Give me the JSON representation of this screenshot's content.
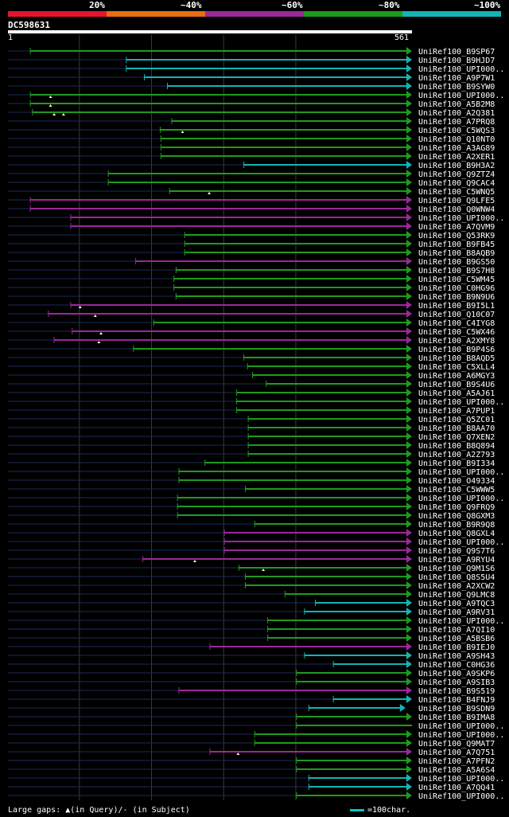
{
  "legend": [
    {
      "label": "20%",
      "color": "#e6142d"
    },
    {
      "label": "~40%",
      "color": "#e66e14"
    },
    {
      "label": "~60%",
      "color": "#9b289b"
    },
    {
      "label": "~80%",
      "color": "#1e9b1e"
    },
    {
      "label": "~100%",
      "color": "#14b4b4"
    }
  ],
  "query": {
    "id": "DC598631",
    "start": "1",
    "end": "561"
  },
  "colors": {
    "background": "#000000",
    "backbone": "#1c2a5a",
    "gridline": "#3a3a3a",
    "marker": "#ffffc8"
  },
  "footer": {
    "gaps_text": "Large gaps: ▲(in Query)/‐ (in Subject)",
    "scale_text": "=100char."
  },
  "chart_data": {
    "type": "alignment-overview",
    "title": "DC598631",
    "x_range": [
      1,
      561
    ],
    "gridlines_at": [
      100,
      200,
      300,
      400
    ],
    "identity_classes": {
      "g": "~80%",
      "c": "~100%",
      "p": "~60%"
    },
    "hits": [
      {
        "label": "UniRef100_B9SP67",
        "start": 32,
        "end": 561,
        "cls": "g",
        "arrow": true
      },
      {
        "label": "UniRef100_B9HJD7",
        "start": 165,
        "end": 561,
        "cls": "c",
        "arrow": true
      },
      {
        "label": "UniRef100_UPI000..",
        "start": 165,
        "end": 561,
        "cls": "c",
        "arrow": true
      },
      {
        "label": "UniRef100_A9P7W1",
        "start": 190,
        "end": 561,
        "cls": "c",
        "arrow": true
      },
      {
        "label": "UniRef100_B9SYW0",
        "start": 222,
        "end": 561,
        "cls": "c",
        "arrow": true
      },
      {
        "label": "UniRef100_UPI000..",
        "start": 32,
        "end": 561,
        "cls": "g",
        "arrow": true,
        "gaps": [
          60
        ]
      },
      {
        "label": "UniRef100_A5B2M8",
        "start": 32,
        "end": 561,
        "cls": "g",
        "arrow": true,
        "gaps": [
          60
        ]
      },
      {
        "label": "UniRef100_A2Q381",
        "start": 35,
        "end": 561,
        "cls": "g",
        "arrow": true,
        "gaps": [
          65,
          78
        ]
      },
      {
        "label": "UniRef100_A7PRQ8",
        "start": 228,
        "end": 561,
        "cls": "g",
        "arrow": true
      },
      {
        "label": "UniRef100_C5WQS3",
        "start": 212,
        "end": 561,
        "cls": "g",
        "arrow": true,
        "gaps": [
          243
        ]
      },
      {
        "label": "UniRef100_Q10NT0",
        "start": 213,
        "end": 561,
        "cls": "g",
        "arrow": true
      },
      {
        "label": "UniRef100_A3AG89",
        "start": 213,
        "end": 561,
        "cls": "g",
        "arrow": true
      },
      {
        "label": "UniRef100_A2XER1",
        "start": 213,
        "end": 561,
        "cls": "g",
        "arrow": true
      },
      {
        "label": "UniRef100_B9H3A2",
        "start": 328,
        "end": 561,
        "cls": "c",
        "arrow": true
      },
      {
        "label": "UniRef100_Q9ZTZ4",
        "start": 140,
        "end": 561,
        "cls": "g",
        "arrow": true
      },
      {
        "label": "UniRef100_Q9CAC4",
        "start": 140,
        "end": 561,
        "cls": "g",
        "arrow": true
      },
      {
        "label": "UniRef100_C5WNQ5",
        "start": 225,
        "end": 561,
        "cls": "g",
        "arrow": true,
        "gaps": [
          280
        ]
      },
      {
        "label": "UniRef100_Q9LFE5",
        "start": 32,
        "end": 561,
        "cls": "p",
        "arrow": true
      },
      {
        "label": "UniRef100_Q0WNW4",
        "start": 32,
        "end": 561,
        "cls": "p",
        "arrow": true
      },
      {
        "label": "UniRef100_UPI000..",
        "start": 88,
        "end": 561,
        "cls": "p",
        "arrow": true
      },
      {
        "label": "UniRef100_A7QVM9",
        "start": 88,
        "end": 561,
        "cls": "p",
        "arrow": true
      },
      {
        "label": "UniRef100_Q53RK9",
        "start": 246,
        "end": 561,
        "cls": "g",
        "arrow": true
      },
      {
        "label": "UniRef100_B9FB45",
        "start": 246,
        "end": 561,
        "cls": "g",
        "arrow": true
      },
      {
        "label": "UniRef100_B8AQB9",
        "start": 246,
        "end": 561,
        "cls": "g",
        "arrow": true
      },
      {
        "label": "UniRef100_B9GS50",
        "start": 178,
        "end": 561,
        "cls": "p",
        "arrow": true
      },
      {
        "label": "UniRef100_B9S7H8",
        "start": 234,
        "end": 561,
        "cls": "g",
        "arrow": true
      },
      {
        "label": "UniRef100_C5WM45",
        "start": 231,
        "end": 561,
        "cls": "g",
        "arrow": true
      },
      {
        "label": "UniRef100_C0HG96",
        "start": 231,
        "end": 561,
        "cls": "g",
        "arrow": true
      },
      {
        "label": "UniRef100_B9N9U6",
        "start": 234,
        "end": 561,
        "cls": "g",
        "arrow": true
      },
      {
        "label": "UniRef100_B9I5L1",
        "start": 88,
        "end": 561,
        "cls": "p",
        "arrow": true,
        "gaps": [
          101
        ]
      },
      {
        "label": "UniRef100_Q10C07",
        "start": 57,
        "end": 561,
        "cls": "p",
        "arrow": true,
        "gaps": [
          122
        ]
      },
      {
        "label": "UniRef100_C4IYG8",
        "start": 203,
        "end": 561,
        "cls": "g",
        "arrow": true
      },
      {
        "label": "UniRef100_C5WX46",
        "start": 90,
        "end": 561,
        "cls": "p",
        "arrow": true,
        "gaps": [
          130
        ]
      },
      {
        "label": "UniRef100_A2XMY8",
        "start": 65,
        "end": 561,
        "cls": "p",
        "arrow": true,
        "gaps": [
          127
        ]
      },
      {
        "label": "UniRef100_B9P4S6",
        "start": 175,
        "end": 561,
        "cls": "g",
        "arrow": true
      },
      {
        "label": "UniRef100_B8AQD5",
        "start": 328,
        "end": 561,
        "cls": "g",
        "arrow": true
      },
      {
        "label": "UniRef100_C5XLL4",
        "start": 333,
        "end": 561,
        "cls": "g",
        "arrow": true
      },
      {
        "label": "UniRef100_A6MGY3",
        "start": 340,
        "end": 561,
        "cls": "g",
        "arrow": true
      },
      {
        "label": "UniRef100_B9S4U6",
        "start": 359,
        "end": 561,
        "cls": "g",
        "arrow": true
      },
      {
        "label": "UniRef100_A5AJ61",
        "start": 318,
        "end": 561,
        "cls": "g",
        "arrow": true
      },
      {
        "label": "UniRef100_UPI000..",
        "start": 318,
        "end": 561,
        "cls": "g",
        "arrow": true
      },
      {
        "label": "UniRef100_A7PUP1",
        "start": 318,
        "end": 561,
        "cls": "g",
        "arrow": true
      },
      {
        "label": "UniRef100_Q5ZC01",
        "start": 334,
        "end": 561,
        "cls": "g",
        "arrow": true
      },
      {
        "label": "UniRef100_B8AA70",
        "start": 334,
        "end": 561,
        "cls": "g",
        "arrow": true
      },
      {
        "label": "UniRef100_Q7XEN2",
        "start": 334,
        "end": 561,
        "cls": "g",
        "arrow": true
      },
      {
        "label": "UniRef100_B8Q894",
        "start": 334,
        "end": 561,
        "cls": "g",
        "arrow": true
      },
      {
        "label": "UniRef100_A2Z793",
        "start": 334,
        "end": 561,
        "cls": "g",
        "arrow": true
      },
      {
        "label": "UniRef100_B9I334",
        "start": 274,
        "end": 561,
        "cls": "g",
        "arrow": true
      },
      {
        "label": "UniRef100_UPI000..",
        "start": 238,
        "end": 561,
        "cls": "g",
        "arrow": true
      },
      {
        "label": "UniRef100_O49334",
        "start": 238,
        "end": 561,
        "cls": "g",
        "arrow": true
      },
      {
        "label": "UniRef100_C5WWW5",
        "start": 330,
        "end": 561,
        "cls": "g",
        "arrow": true
      },
      {
        "label": "UniRef100_UPI000..",
        "start": 236,
        "end": 561,
        "cls": "g",
        "arrow": true
      },
      {
        "label": "UniRef100_Q9FRQ9",
        "start": 236,
        "end": 561,
        "cls": "g",
        "arrow": true
      },
      {
        "label": "UniRef100_Q8GXM3",
        "start": 236,
        "end": 561,
        "cls": "g",
        "arrow": true
      },
      {
        "label": "UniRef100_B9R9Q8",
        "start": 343,
        "end": 561,
        "cls": "g",
        "arrow": true
      },
      {
        "label": "UniRef100_Q8GXL4",
        "start": 301,
        "end": 561,
        "cls": "p",
        "arrow": true
      },
      {
        "label": "UniRef100_UPI000..",
        "start": 301,
        "end": 561,
        "cls": "p",
        "arrow": true
      },
      {
        "label": "UniRef100_Q9S7T6",
        "start": 301,
        "end": 561,
        "cls": "p",
        "arrow": true
      },
      {
        "label": "UniRef100_A9RYU4",
        "start": 188,
        "end": 561,
        "cls": "p",
        "arrow": true,
        "gaps": [
          260
        ]
      },
      {
        "label": "UniRef100_Q9M1S6",
        "start": 321,
        "end": 561,
        "cls": "g",
        "arrow": true,
        "gaps": [
          355
        ]
      },
      {
        "label": "UniRef100_Q8S5U4",
        "start": 330,
        "end": 561,
        "cls": "g",
        "arrow": true
      },
      {
        "label": "UniRef100_A2XCW2",
        "start": 330,
        "end": 561,
        "cls": "g",
        "arrow": true
      },
      {
        "label": "UniRef100_Q9LMC8",
        "start": 385,
        "end": 561,
        "cls": "g",
        "arrow": true
      },
      {
        "label": "UniRef100_A9TQC3",
        "start": 427,
        "end": 561,
        "cls": "c",
        "arrow": true
      },
      {
        "label": "UniRef100_A9RV31",
        "start": 412,
        "end": 561,
        "cls": "c",
        "arrow": true
      },
      {
        "label": "UniRef100_UPI000..",
        "start": 361,
        "end": 561,
        "cls": "g",
        "arrow": true
      },
      {
        "label": "UniRef100_A7QI10",
        "start": 361,
        "end": 561,
        "cls": "g",
        "arrow": true
      },
      {
        "label": "UniRef100_A5BSB6",
        "start": 361,
        "end": 561,
        "cls": "g",
        "arrow": true
      },
      {
        "label": "UniRef100_B9IEJ0",
        "start": 281,
        "end": 561,
        "cls": "p",
        "arrow": true
      },
      {
        "label": "UniRef100_A9SH43",
        "start": 412,
        "end": 561,
        "cls": "c",
        "arrow": true
      },
      {
        "label": "UniRef100_C0HG36",
        "start": 452,
        "end": 561,
        "cls": "c",
        "arrow": true
      },
      {
        "label": "UniRef100_A9SKP6",
        "start": 401,
        "end": 561,
        "cls": "g",
        "arrow": true
      },
      {
        "label": "UniRef100_A9SIB3",
        "start": 401,
        "end": 561,
        "cls": "g",
        "arrow": true
      },
      {
        "label": "UniRef100_B9S519",
        "start": 238,
        "end": 561,
        "cls": "p",
        "arrow": true
      },
      {
        "label": "UniRef100_B4FNJ9",
        "start": 452,
        "end": 561,
        "cls": "c",
        "arrow": true
      },
      {
        "label": "UniRef100_B9SDN9",
        "start": 418,
        "end": 552,
        "cls": "c",
        "arrow": true
      },
      {
        "label": "UniRef100_B9IMA8",
        "start": 401,
        "end": 561,
        "cls": "g",
        "arrow": true
      },
      {
        "label": "UniRef100_UPI000..",
        "start": 401,
        "end": 561,
        "cls": "g",
        "arrow": false
      },
      {
        "label": "UniRef100_UPI000..",
        "start": 343,
        "end": 561,
        "cls": "g",
        "arrow": true
      },
      {
        "label": "UniRef100_Q9MAT7",
        "start": 343,
        "end": 561,
        "cls": "g",
        "arrow": true
      },
      {
        "label": "UniRef100_A7Q751",
        "start": 281,
        "end": 561,
        "cls": "p",
        "arrow": true,
        "gaps": [
          320
        ]
      },
      {
        "label": "UniRef100_A7PFN2",
        "start": 401,
        "end": 561,
        "cls": "g",
        "arrow": true
      },
      {
        "label": "UniRef100_A5A6S4",
        "start": 401,
        "end": 561,
        "cls": "g",
        "arrow": true
      },
      {
        "label": "UniRef100_UPI000..",
        "start": 418,
        "end": 561,
        "cls": "c",
        "arrow": true
      },
      {
        "label": "UniRef100_A7QQ41",
        "start": 418,
        "end": 561,
        "cls": "c",
        "arrow": true
      },
      {
        "label": "UniRef100_UPI000..",
        "start": 401,
        "end": 561,
        "cls": "g",
        "arrow": true
      }
    ]
  }
}
